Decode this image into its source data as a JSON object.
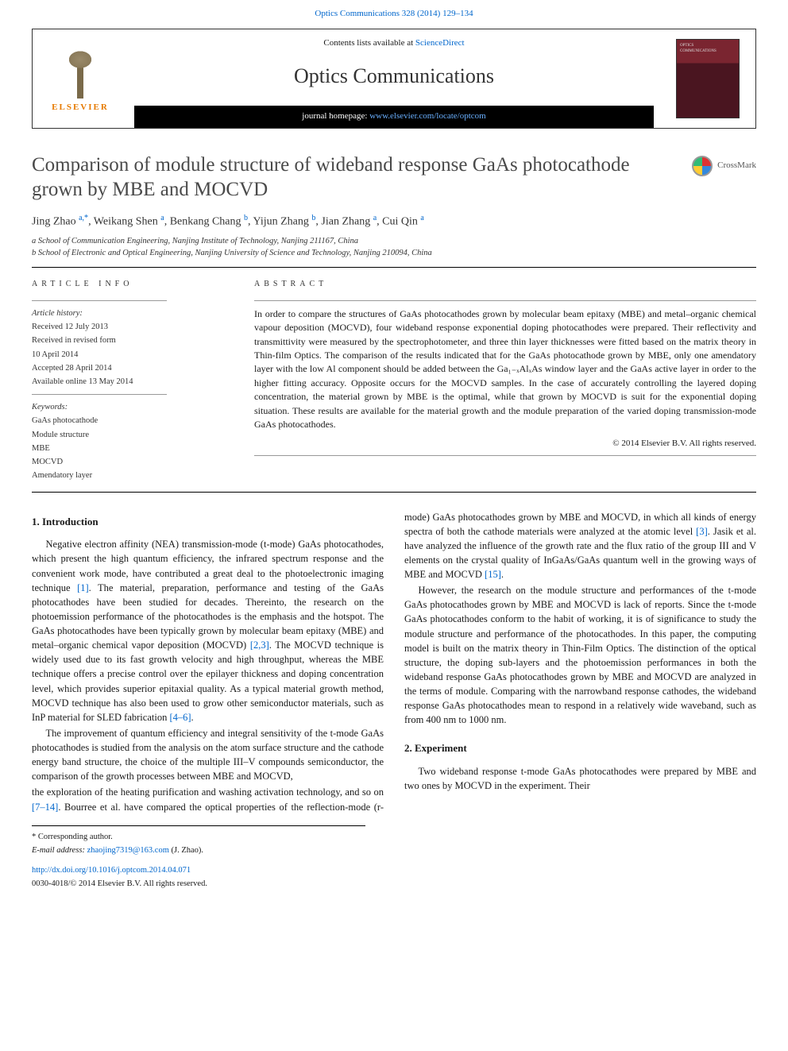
{
  "header": {
    "top_link": "Optics Communications 328 (2014) 129–134",
    "contents_line_pre": "Contents lists available at ",
    "contents_link": "ScienceDirect",
    "journal_name": "Optics Communications",
    "homepage_pre": "journal homepage: ",
    "homepage_link": "www.elsevier.com/locate/optcom",
    "elsevier_name": "ELSEVIER",
    "cover_label_top": "OPTICS",
    "cover_label_bottom": "COMMUNICATIONS"
  },
  "title": {
    "text": "Comparison of module structure of wideband response GaAs photocathode grown by MBE and MOCVD",
    "crossmark": "CrossMark"
  },
  "authors": {
    "list_html": "Jing Zhao <sup>a,*</sup>, Weikang Shen <sup>a</sup>, Benkang Chang <sup>b</sup>, Yijun Zhang <sup>b</sup>, Jian Zhang <sup>a</sup>, Cui Qin <sup>a</sup>"
  },
  "affiliations": {
    "a": "a School of Communication Engineering, Nanjing Institute of Technology, Nanjing 211167, China",
    "b": "b School of Electronic and Optical Engineering, Nanjing University of Science and Technology, Nanjing 210094, China"
  },
  "article_info": {
    "heading": "ARTICLE INFO",
    "history_label": "Article history:",
    "received": "Received 12 July 2013",
    "revised1": "Received in revised form",
    "revised2": "10 April 2014",
    "accepted": "Accepted 28 April 2014",
    "online": "Available online 13 May 2014",
    "keywords_label": "Keywords:",
    "keywords": [
      "GaAs photocathode",
      "Module structure",
      "MBE",
      "MOCVD",
      "Amendatory layer"
    ]
  },
  "abstract": {
    "heading": "ABSTRACT",
    "text": "In order to compare the structures of GaAs photocathodes grown by molecular beam epitaxy (MBE) and metal–organic chemical vapour deposition (MOCVD), four wideband response exponential doping photocathodes were prepared. Their reflectivity and transmittivity were measured by the spectrophotometer, and three thin layer thicknesses were fitted based on the matrix theory in Thin-film Optics. The comparison of the results indicated that for the GaAs photocathode grown by MBE, only one amendatory layer with the low Al component should be added between the Ga₁₋ₓAlₓAs window layer and the GaAs active layer in order to the higher fitting accuracy. Opposite occurs for the MOCVD samples. In the case of accurately controlling the layered doping concentration, the material grown by MBE is the optimal, while that grown by MOCVD is suit for the exponential doping situation. These results are available for the material growth and the module preparation of the varied doping transmission-mode GaAs photocathodes.",
    "copyright": "© 2014 Elsevier B.V. All rights reserved."
  },
  "sections": {
    "intro_heading": "1.  Introduction",
    "intro_p1": "Negative electron affinity (NEA) transmission-mode (t-mode) GaAs photocathodes, which present the high quantum efficiency, the infrared spectrum response and the convenient work mode, have contributed a great deal to the photoelectronic imaging technique [1]. The material, preparation, performance and testing of the GaAs photocathodes have been studied for decades. Thereinto, the research on the photoemission performance of the photocathodes is the emphasis and the hotspot. The GaAs photocathodes have been typically grown by molecular beam epitaxy (MBE) and metal–organic chemical vapor deposition (MOCVD) [2,3]. The MOCVD technique is widely used due to its fast growth velocity and high throughput, whereas the MBE technique offers a precise control over the epilayer thickness and doping concentration level, which provides superior epitaxial quality. As a typical material growth method, MOCVD technique has also been used to grow other semiconductor materials, such as InP material for SLED fabrication [4–6].",
    "intro_p2": "The improvement of quantum efficiency and integral sensitivity of the t-mode GaAs photocathodes is studied from the analysis on the atom surface structure and the cathode energy band structure, the choice of the multiple III–V compounds semiconductor, the comparison of the growth processes between MBE and MOCVD,",
    "intro_p3": "the exploration of the heating purification and washing activation technology, and so on [7–14]. Bourree et al. have compared the optical properties of the reflection-mode (r-mode) GaAs photocathodes grown by MBE and MOCVD, in which all kinds of energy spectra of both the cathode materials were analyzed at the atomic level [3]. Jasik et al. have analyzed the influence of the growth rate and the flux ratio of the group III and V elements on the crystal quality of InGaAs/GaAs quantum well in the growing ways of MBE and MOCVD [15].",
    "intro_p4": "However, the research on the module structure and performances of the t-mode GaAs photocathodes grown by MBE and MOCVD is lack of reports. Since the t-mode GaAs photocathodes conform to the habit of working, it is of significance to study the module structure and performance of the photocathodes. In this paper, the computing model is built on the matrix theory in Thin-Film Optics. The distinction of the optical structure, the doping sub-layers and the photoemission performances in both the wideband response GaAs photocathodes grown by MBE and MOCVD are analyzed in the terms of module. Comparing with the narrowband response cathodes, the wideband response GaAs photocathodes mean to respond in a relatively wide waveband, such as from 400 nm to 1000 nm.",
    "exp_heading": "2.  Experiment",
    "exp_p1": "Two wideband response t-mode GaAs photocathodes were prepared by MBE and two ones by MOCVD in the experiment. Their"
  },
  "footer": {
    "corr": "* Corresponding author.",
    "email_label": "E-mail address: ",
    "email": "zhaojing7319@163.com",
    "email_suffix": " (J. Zhao).",
    "doi": "http://dx.doi.org/10.1016/j.optcom.2014.04.071",
    "issn": "0030-4018/© 2014 Elsevier B.V. All rights reserved."
  },
  "colors": {
    "link": "#0066cc",
    "elsevier_orange": "#e67a00",
    "rule": "#000000",
    "cover_top": "#7a2530",
    "cover_bottom": "#4a1520"
  }
}
